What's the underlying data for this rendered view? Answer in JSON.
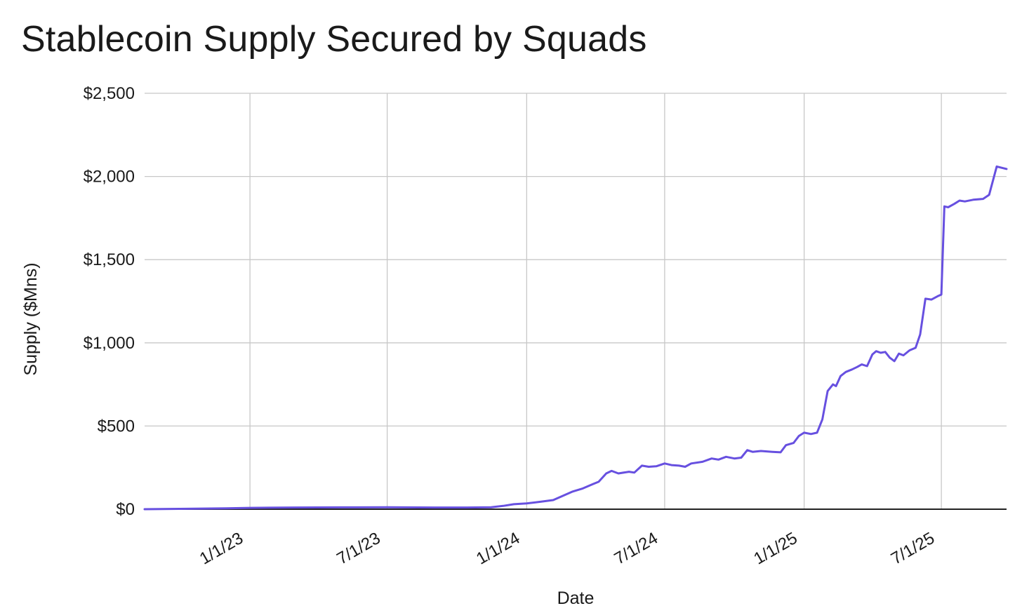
{
  "chart_data": {
    "type": "line",
    "title": "Stablecoin Supply Secured by Squads",
    "xlabel": "Date",
    "ylabel": "Supply ($Mns)",
    "ylim": [
      0,
      2500
    ],
    "xlim": [
      "2022-08-15",
      "2025-09-25"
    ],
    "grid": true,
    "legend": "none",
    "line_color": "#6750e0",
    "y_ticks": [
      {
        "value": 0,
        "label": "$0"
      },
      {
        "value": 500,
        "label": "$500"
      },
      {
        "value": 1000,
        "label": "$1,000"
      },
      {
        "value": 1500,
        "label": "$1,500"
      },
      {
        "value": 2000,
        "label": "$2,000"
      },
      {
        "value": 2500,
        "label": "$2,500"
      }
    ],
    "x_ticks": [
      {
        "date": "2023-01-01",
        "label": "1/1/23"
      },
      {
        "date": "2023-07-01",
        "label": "7/1/23"
      },
      {
        "date": "2024-01-01",
        "label": "1/1/24"
      },
      {
        "date": "2024-07-01",
        "label": "7/1/24"
      },
      {
        "date": "2025-01-01",
        "label": "1/1/25"
      },
      {
        "date": "2025-07-01",
        "label": "7/1/25"
      }
    ],
    "series": [
      {
        "points": [
          [
            "2022-08-15",
            0
          ],
          [
            "2022-10-01",
            2
          ],
          [
            "2022-12-01",
            5
          ],
          [
            "2023-01-01",
            8
          ],
          [
            "2023-03-01",
            10
          ],
          [
            "2023-05-01",
            11
          ],
          [
            "2023-07-01",
            12
          ],
          [
            "2023-09-01",
            10
          ],
          [
            "2023-10-15",
            10
          ],
          [
            "2023-11-15",
            12
          ],
          [
            "2023-12-01",
            20
          ],
          [
            "2023-12-15",
            30
          ],
          [
            "2024-01-01",
            35
          ],
          [
            "2024-01-20",
            45
          ],
          [
            "2024-02-05",
            55
          ],
          [
            "2024-02-15",
            75
          ],
          [
            "2024-03-01",
            105
          ],
          [
            "2024-03-15",
            125
          ],
          [
            "2024-03-28",
            150
          ],
          [
            "2024-04-05",
            165
          ],
          [
            "2024-04-15",
            215
          ],
          [
            "2024-04-22",
            230
          ],
          [
            "2024-05-01",
            215
          ],
          [
            "2024-05-15",
            225
          ],
          [
            "2024-05-22",
            220
          ],
          [
            "2024-06-01",
            262
          ],
          [
            "2024-06-10",
            255
          ],
          [
            "2024-06-20",
            258
          ],
          [
            "2024-07-01",
            275
          ],
          [
            "2024-07-10",
            265
          ],
          [
            "2024-07-20",
            262
          ],
          [
            "2024-07-28",
            255
          ],
          [
            "2024-08-05",
            275
          ],
          [
            "2024-08-20",
            285
          ],
          [
            "2024-09-01",
            305
          ],
          [
            "2024-09-10",
            298
          ],
          [
            "2024-09-20",
            315
          ],
          [
            "2024-10-01",
            305
          ],
          [
            "2024-10-10",
            310
          ],
          [
            "2024-10-18",
            355
          ],
          [
            "2024-10-25",
            345
          ],
          [
            "2024-11-05",
            350
          ],
          [
            "2024-11-20",
            345
          ],
          [
            "2024-12-01",
            342
          ],
          [
            "2024-12-08",
            385
          ],
          [
            "2024-12-18",
            398
          ],
          [
            "2024-12-25",
            440
          ],
          [
            "2025-01-01",
            460
          ],
          [
            "2025-01-10",
            452
          ],
          [
            "2025-01-18",
            460
          ],
          [
            "2025-01-25",
            540
          ],
          [
            "2025-02-01",
            710
          ],
          [
            "2025-02-08",
            750
          ],
          [
            "2025-02-12",
            740
          ],
          [
            "2025-02-18",
            800
          ],
          [
            "2025-02-25",
            825
          ],
          [
            "2025-03-05",
            840
          ],
          [
            "2025-03-12",
            855
          ],
          [
            "2025-03-18",
            870
          ],
          [
            "2025-03-25",
            860
          ],
          [
            "2025-04-01",
            930
          ],
          [
            "2025-04-06",
            950
          ],
          [
            "2025-04-12",
            940
          ],
          [
            "2025-04-18",
            945
          ],
          [
            "2025-04-24",
            910
          ],
          [
            "2025-04-30",
            890
          ],
          [
            "2025-05-06",
            935
          ],
          [
            "2025-05-12",
            925
          ],
          [
            "2025-05-20",
            955
          ],
          [
            "2025-05-28",
            970
          ],
          [
            "2025-06-03",
            1050
          ],
          [
            "2025-06-10",
            1265
          ],
          [
            "2025-06-18",
            1260
          ],
          [
            "2025-06-26",
            1280
          ],
          [
            "2025-07-01",
            1290
          ],
          [
            "2025-07-05",
            1820
          ],
          [
            "2025-07-10",
            1815
          ],
          [
            "2025-07-18",
            1835
          ],
          [
            "2025-07-25",
            1855
          ],
          [
            "2025-08-01",
            1850
          ],
          [
            "2025-08-12",
            1860
          ],
          [
            "2025-08-25",
            1865
          ],
          [
            "2025-09-02",
            1890
          ],
          [
            "2025-09-12",
            2060
          ],
          [
            "2025-09-25",
            2045
          ]
        ]
      }
    ]
  }
}
